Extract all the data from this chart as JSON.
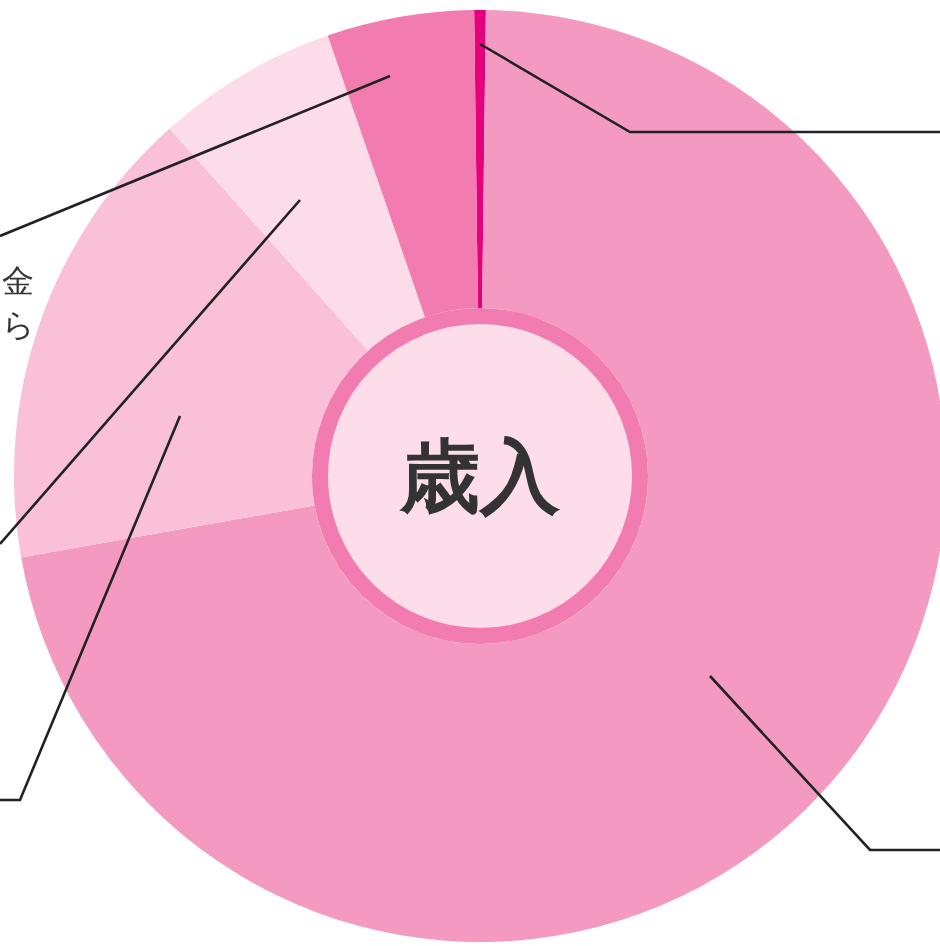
{
  "chart_data": {
    "type": "donut",
    "title": "歳入",
    "categories": [
      null,
      null,
      null,
      null,
      null
    ],
    "values": [
      0.4,
      72.0,
      16.2,
      6.3,
      5.1
    ],
    "colors": [
      "#e4007f",
      "#f49ac1",
      "#f9c0d8",
      "#fddce9",
      "#f27bb0"
    ],
    "annotations": [
      "金",
      "ら"
    ]
  }
}
